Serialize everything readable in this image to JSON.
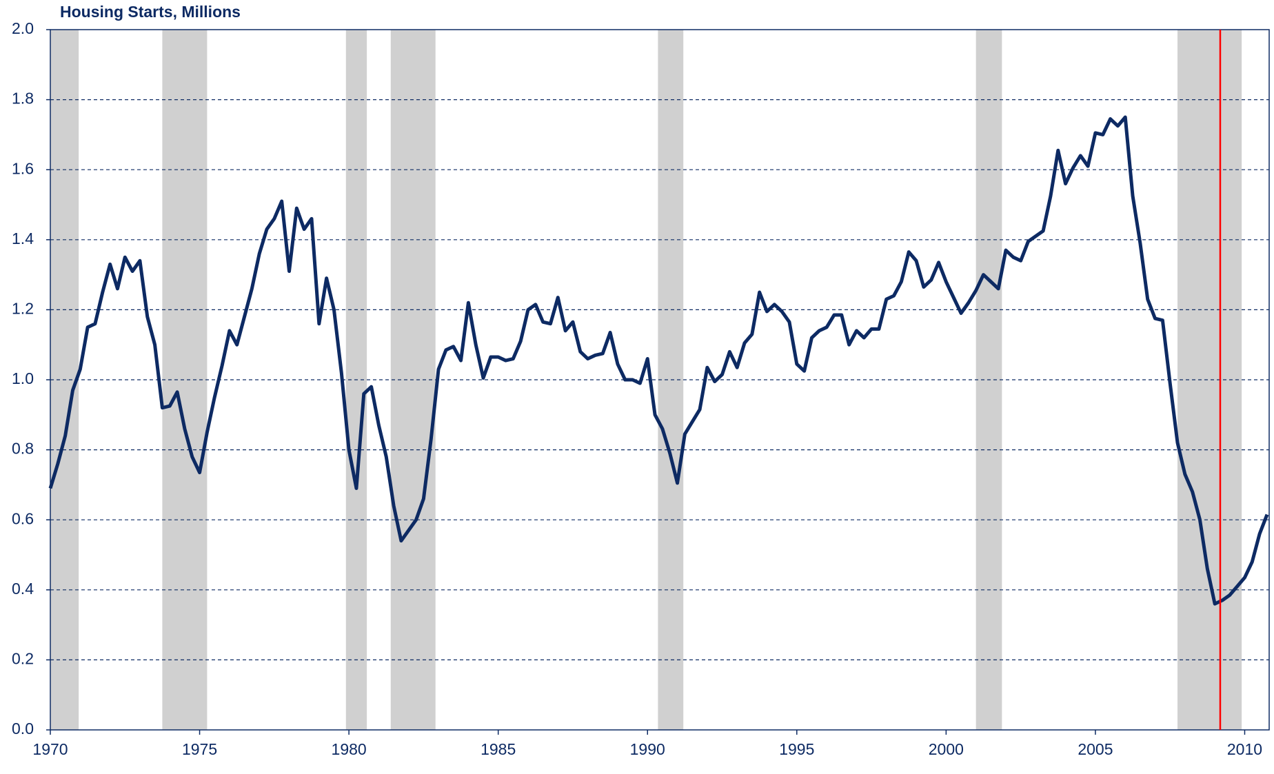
{
  "chart_data": {
    "type": "line",
    "title": "Housing Starts, Millions",
    "color": "#0d2a63",
    "x": [
      1970,
      1970.25,
      1970.5,
      1970.75,
      1971,
      1971.25,
      1971.5,
      1971.75,
      1972,
      1972.25,
      1972.5,
      1972.75,
      1973,
      1973.25,
      1973.5,
      1973.75,
      1974,
      1974.25,
      1974.5,
      1974.75,
      1975,
      1975.25,
      1975.5,
      1975.75,
      1976,
      1976.25,
      1976.5,
      1976.75,
      1977,
      1977.25,
      1977.5,
      1977.75,
      1978,
      1978.25,
      1978.5,
      1978.75,
      1979,
      1979.25,
      1979.5,
      1979.75,
      1980,
      1980.25,
      1980.5,
      1980.75,
      1981,
      1981.25,
      1981.5,
      1981.75,
      1982,
      1982.25,
      1982.5,
      1982.75,
      1983,
      1983.25,
      1983.5,
      1983.75,
      1984,
      1984.25,
      1984.5,
      1984.75,
      1985,
      1985.25,
      1985.5,
      1985.75,
      1986,
      1986.25,
      1986.5,
      1986.75,
      1987,
      1987.25,
      1987.5,
      1987.75,
      1988,
      1988.25,
      1988.5,
      1988.75,
      1989,
      1989.25,
      1989.5,
      1989.75,
      1990,
      1990.25,
      1990.5,
      1990.75,
      1991,
      1991.25,
      1991.5,
      1991.75,
      1992,
      1992.25,
      1992.5,
      1992.75,
      1993,
      1993.25,
      1993.5,
      1993.75,
      1994,
      1994.25,
      1994.5,
      1994.75,
      1995,
      1995.25,
      1995.5,
      1995.75,
      1996,
      1996.25,
      1996.5,
      1996.75,
      1997,
      1997.25,
      1997.5,
      1997.75,
      1998,
      1998.25,
      1998.5,
      1998.75,
      1999,
      1999.25,
      1999.5,
      1999.75,
      2000,
      2000.25,
      2000.5,
      2000.75,
      2001,
      2001.25,
      2001.5,
      2001.75,
      2002,
      2002.25,
      2002.5,
      2002.75,
      2003,
      2003.25,
      2003.5,
      2003.75,
      2004,
      2004.25,
      2004.5,
      2004.75,
      2005,
      2005.25,
      2005.5,
      2005.75,
      2006,
      2006.25,
      2006.5,
      2006.75,
      2007,
      2007.25,
      2007.5,
      2007.75,
      2008,
      2008.25,
      2008.5,
      2008.75,
      2009,
      2009.25,
      2009.5,
      2009.75,
      2010,
      2010.25,
      2010.5,
      2010.75
    ],
    "values": [
      0.69,
      0.76,
      0.84,
      0.97,
      1.03,
      1.15,
      1.16,
      1.25,
      1.33,
      1.26,
      1.35,
      1.31,
      1.34,
      1.18,
      1.1,
      0.92,
      0.925,
      0.965,
      0.86,
      0.78,
      0.735,
      0.85,
      0.95,
      1.04,
      1.14,
      1.1,
      1.18,
      1.26,
      1.36,
      1.43,
      1.46,
      1.51,
      1.31,
      1.49,
      1.43,
      1.46,
      1.16,
      1.29,
      1.2,
      1.02,
      0.8,
      0.69,
      0.96,
      0.98,
      0.87,
      0.78,
      0.64,
      0.54,
      0.57,
      0.6,
      0.66,
      0.83,
      1.03,
      1.085,
      1.095,
      1.055,
      1.22,
      1.1,
      1.005,
      1.065,
      1.065,
      1.055,
      1.06,
      1.11,
      1.2,
      1.215,
      1.165,
      1.16,
      1.235,
      1.14,
      1.165,
      1.08,
      1.06,
      1.07,
      1.075,
      1.135,
      1.045,
      1.0,
      1.0,
      0.99,
      1.06,
      0.9,
      0.86,
      0.79,
      0.705,
      0.845,
      0.88,
      0.915,
      1.035,
      0.995,
      1.015,
      1.08,
      1.035,
      1.105,
      1.13,
      1.25,
      1.195,
      1.215,
      1.195,
      1.165,
      1.045,
      1.025,
      1.12,
      1.14,
      1.15,
      1.185,
      1.185,
      1.1,
      1.14,
      1.12,
      1.145,
      1.145,
      1.23,
      1.24,
      1.28,
      1.365,
      1.34,
      1.265,
      1.285,
      1.335,
      1.28,
      1.235,
      1.19,
      1.22,
      1.255,
      1.3,
      1.28,
      1.26,
      1.37,
      1.35,
      1.34,
      1.395,
      1.41,
      1.425,
      1.525,
      1.655,
      1.56,
      1.605,
      1.64,
      1.61,
      1.705,
      1.7,
      1.745,
      1.725,
      1.75,
      1.525,
      1.39,
      1.23,
      1.175,
      1.17,
      0.99,
      0.82,
      0.73,
      0.68,
      0.6,
      0.46,
      0.36,
      0.37,
      0.385,
      0.41,
      0.435,
      0.48,
      0.56,
      0.615
    ],
    "xlim": [
      1970,
      2010.82
    ],
    "xticks": [
      1970,
      1975,
      1980,
      1985,
      1990,
      1995,
      2000,
      2005,
      2010
    ],
    "ylim": [
      0,
      2
    ],
    "yticks": [
      {
        "value": 0,
        "label": "0.0"
      },
      0.2,
      0.4,
      0.6,
      0.8,
      {
        "value": 1,
        "label": "1.0"
      },
      1.2,
      1.4,
      1.6,
      1.8,
      {
        "value": 2,
        "label": "2.0"
      }
    ],
    "grid": true,
    "shaded_periods": [
      [
        1970,
        1970.95
      ],
      [
        1973.75,
        1975.25
      ],
      [
        1979.9,
        1980.6
      ],
      [
        1981.4,
        1982.9
      ],
      [
        1990.35,
        1991.2
      ],
      [
        2001,
        2001.87
      ],
      [
        2007.75,
        2009.9
      ]
    ],
    "shade_color": "#d0d0d0",
    "vline": 2009.18,
    "vline_color": "#ff0000"
  }
}
